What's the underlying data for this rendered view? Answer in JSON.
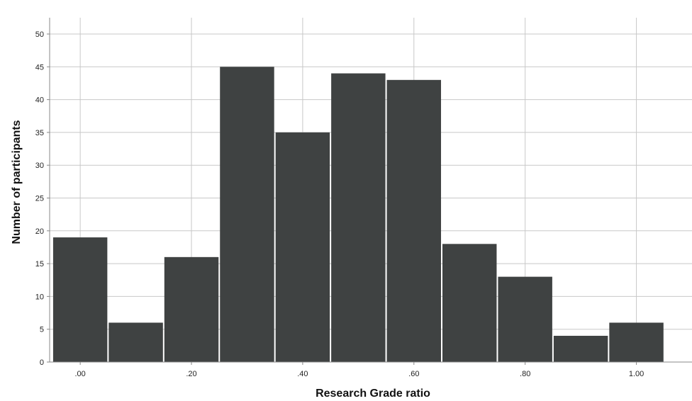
{
  "chart_data": {
    "type": "bar",
    "title": "",
    "xlabel": "Research Grade ratio",
    "ylabel": "Number of participants",
    "bin_centers": [
      0.0,
      0.1,
      0.2,
      0.3,
      0.4,
      0.5,
      0.6,
      0.7,
      0.8,
      0.9,
      1.0
    ],
    "values": [
      19,
      6,
      16,
      45,
      35,
      44,
      43,
      18,
      13,
      4,
      6
    ],
    "x_ticks": [
      {
        "value": 0.0,
        "label": ".00"
      },
      {
        "value": 0.2,
        "label": ".20"
      },
      {
        "value": 0.4,
        "label": ".40"
      },
      {
        "value": 0.6,
        "label": ".60"
      },
      {
        "value": 0.8,
        "label": ".80"
      },
      {
        "value": 1.0,
        "label": "1.00"
      }
    ],
    "y_ticks": [
      0,
      5,
      10,
      15,
      20,
      25,
      30,
      35,
      40,
      45,
      50
    ],
    "ylim": [
      0,
      50
    ],
    "xlim": [
      -0.055,
      1.1
    ],
    "bar_color": "#3f4242",
    "grid": true,
    "gridline_color": "#c8c8c8"
  }
}
